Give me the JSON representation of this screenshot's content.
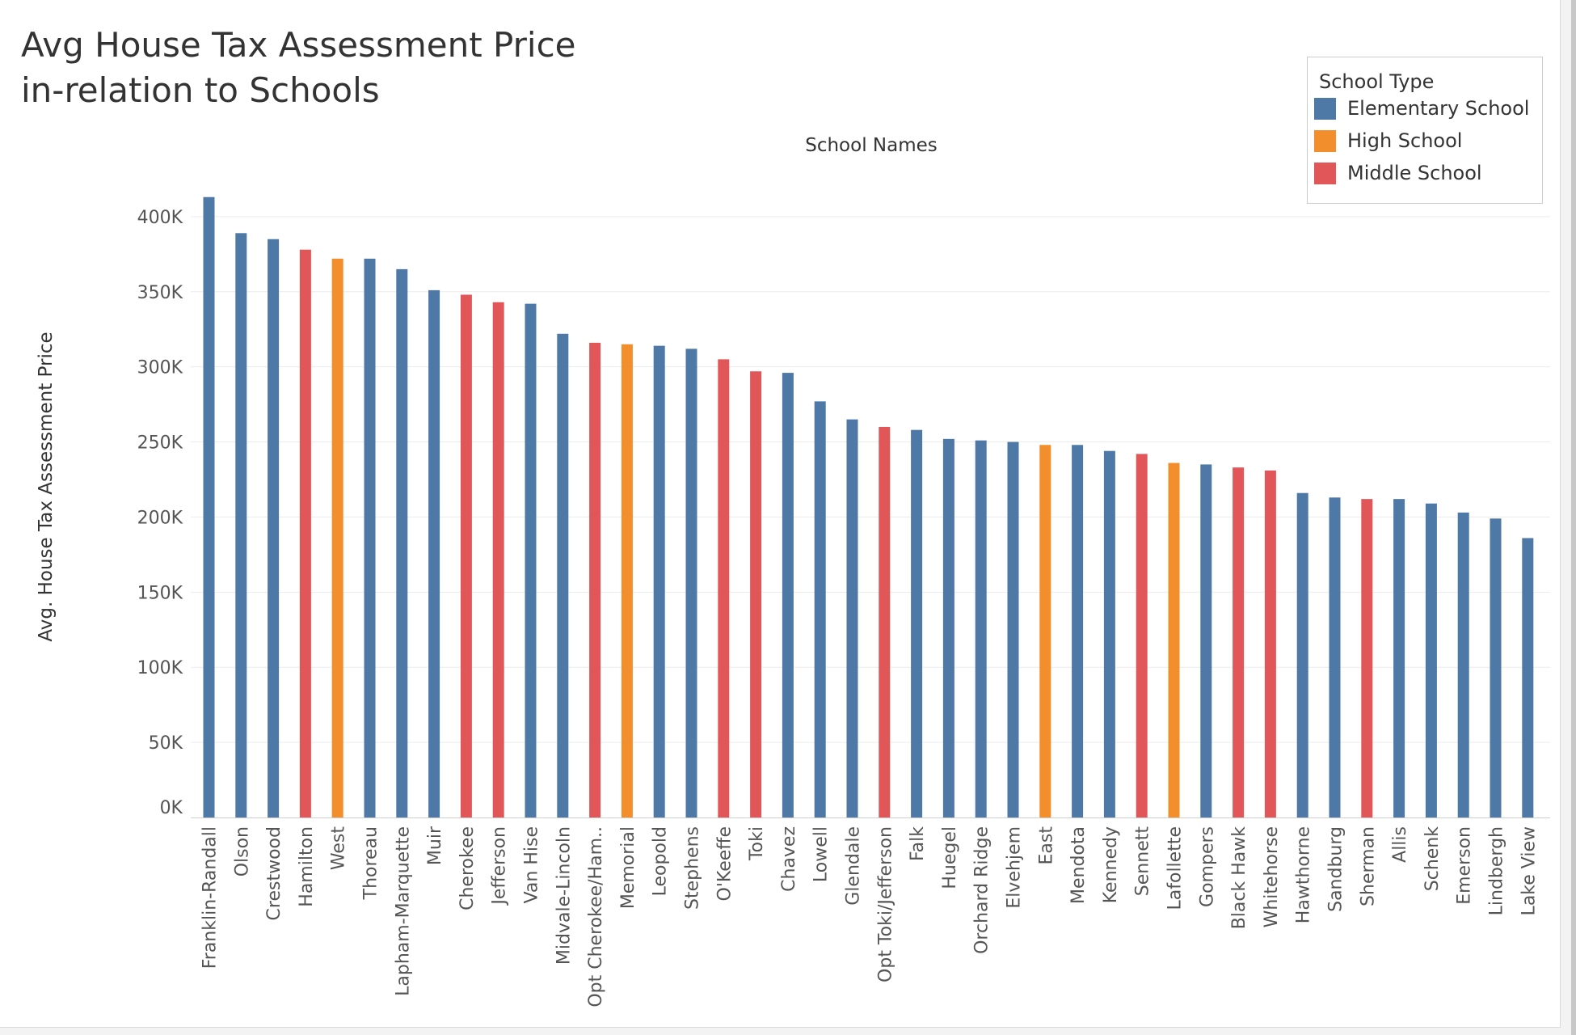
{
  "title_line1": "Avg House Tax Assessment Price",
  "title_line2": "in-relation to Schools",
  "legend": {
    "title": "School Type",
    "items": [
      {
        "label": "Elementary School",
        "color": "#4e79a7"
      },
      {
        "label": "High School",
        "color": "#f28e2b"
      },
      {
        "label": "Middle School",
        "color": "#e15759"
      }
    ]
  },
  "chart_data": {
    "type": "bar",
    "title": "Avg House Tax Assessment Price in-relation to Schools",
    "xlabel": "School Names",
    "ylabel": "Avg. House Tax Assessment Price",
    "ylim": [
      0,
      415000
    ],
    "yticks": [
      0,
      50000,
      100000,
      150000,
      200000,
      250000,
      300000,
      350000,
      400000
    ],
    "ytick_labels": [
      "0K",
      "50K",
      "100K",
      "150K",
      "200K",
      "250K",
      "300K",
      "350K",
      "400K"
    ],
    "grid": true,
    "legend_position": "top-right",
    "categories": [
      "Franklin-Randall",
      "Olson",
      "Crestwood",
      "Hamilton",
      "West",
      "Thoreau",
      "Lapham-Marquette",
      "Muir",
      "Cherokee",
      "Jefferson",
      "Van Hise",
      "Midvale-Lincoln",
      "Opt Cherokee/Ham..",
      "Memorial",
      "Leopold",
      "Stephens",
      "O'Keeffe",
      "Toki",
      "Chavez",
      "Lowell",
      "Glendale",
      "Opt Toki/Jefferson",
      "Falk",
      "Huegel",
      "Orchard Ridge",
      "Elvehjem",
      "East",
      "Mendota",
      "Kennedy",
      "Sennett",
      "Lafollette",
      "Gompers",
      "Black Hawk",
      "Whitehorse",
      "Hawthorne",
      "Sandburg",
      "Sherman",
      "Allis",
      "Schenk",
      "Emerson",
      "Lindbergh",
      "Lake View"
    ],
    "values": [
      413000,
      389000,
      385000,
      378000,
      372000,
      372000,
      365000,
      351000,
      348000,
      343000,
      342000,
      322000,
      316000,
      315000,
      314000,
      312000,
      305000,
      297000,
      296000,
      277000,
      265000,
      260000,
      258000,
      252000,
      251000,
      250000,
      248000,
      248000,
      244000,
      242000,
      236000,
      235000,
      233000,
      231000,
      216000,
      213000,
      212000,
      212000,
      209000,
      203000,
      199000,
      186000
    ],
    "school_type": [
      "Elementary School",
      "Elementary School",
      "Elementary School",
      "Middle School",
      "High School",
      "Elementary School",
      "Elementary School",
      "Elementary School",
      "Middle School",
      "Middle School",
      "Elementary School",
      "Elementary School",
      "Middle School",
      "High School",
      "Elementary School",
      "Elementary School",
      "Middle School",
      "Middle School",
      "Elementary School",
      "Elementary School",
      "Elementary School",
      "Middle School",
      "Elementary School",
      "Elementary School",
      "Elementary School",
      "Elementary School",
      "High School",
      "Elementary School",
      "Elementary School",
      "Middle School",
      "High School",
      "Elementary School",
      "Middle School",
      "Middle School",
      "Elementary School",
      "Elementary School",
      "Middle School",
      "Elementary School",
      "Elementary School",
      "Elementary School",
      "Elementary School",
      "Elementary School"
    ]
  }
}
